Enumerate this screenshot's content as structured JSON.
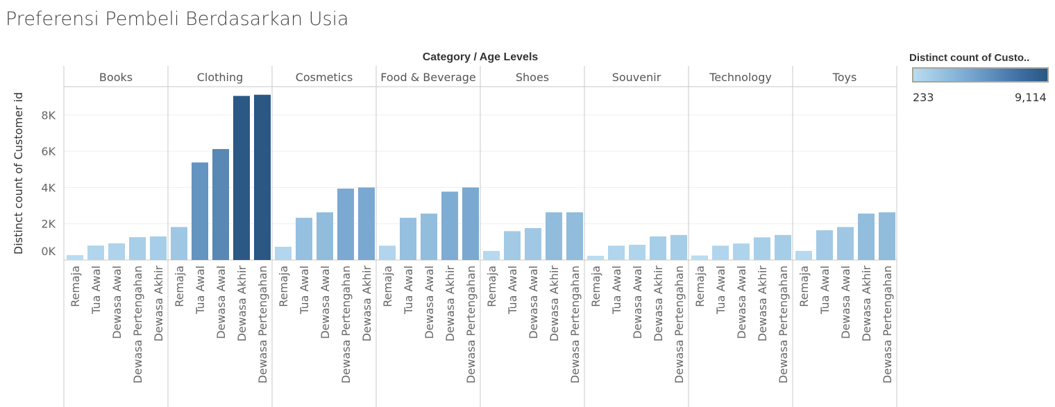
{
  "title": "Preferensi Pembeli Berdasarkan Usia",
  "chart_data": {
    "type": "bar",
    "title": "Preferensi Pembeli Berdasarkan Usia",
    "column_header": "Category / Age Levels",
    "ylabel": "Distinct count of Customer id",
    "ylim": [
      0,
      9500
    ],
    "yticks": [
      "0K",
      "2K",
      "4K",
      "6K",
      "8K"
    ],
    "ytick_values": [
      0,
      2000,
      4000,
      6000,
      8000
    ],
    "grid": true,
    "panels": [
      {
        "category": "Books",
        "labels": [
          "Remaja",
          "Tua Awal",
          "Dewasa Awal",
          "Dewasa Pertengahan",
          "Dewasa Akhir"
        ],
        "values": [
          270,
          800,
          920,
          1260,
          1300
        ]
      },
      {
        "category": "Clothing",
        "labels": [
          "Remaja",
          "Tua Awal",
          "Dewasa Awal",
          "Dewasa Akhir",
          "Dewasa Pertengahan"
        ],
        "values": [
          1820,
          5380,
          6120,
          9050,
          9114
        ]
      },
      {
        "category": "Cosmetics",
        "labels": [
          "Remaja",
          "Tua Awal",
          "Dewasa Awal",
          "Dewasa Pertengahan",
          "Dewasa Akhir"
        ],
        "values": [
          730,
          2330,
          2630,
          3940,
          4000
        ]
      },
      {
        "category": "Food & Beverage",
        "labels": [
          "Remaja",
          "Tua Awal",
          "Dewasa Awal",
          "Dewasa Akhir",
          "Dewasa Pertengahan"
        ],
        "values": [
          790,
          2330,
          2560,
          3770,
          4000
        ]
      },
      {
        "category": "Shoes",
        "labels": [
          "Remaja",
          "Tua Awal",
          "Dewasa Awal",
          "Dewasa Akhir",
          "Dewasa Pertengahan"
        ],
        "values": [
          500,
          1590,
          1760,
          2630,
          2630
        ]
      },
      {
        "category": "Souvenir",
        "labels": [
          "Remaja",
          "Tua Awal",
          "Dewasa Awal",
          "Dewasa Akhir",
          "Dewasa Pertengahan"
        ],
        "values": [
          233,
          790,
          840,
          1300,
          1380
        ]
      },
      {
        "category": "Technology",
        "labels": [
          "Remaja",
          "Tua Awal",
          "Dewasa Awal",
          "Dewasa Akhir",
          "Dewasa Pertengahan"
        ],
        "values": [
          250,
          790,
          910,
          1250,
          1380
        ]
      },
      {
        "category": "Toys",
        "labels": [
          "Remaja",
          "Tua Awal",
          "Dewasa Awal",
          "Dewasa Akhir",
          "Dewasa Pertengahan"
        ],
        "values": [
          500,
          1640,
          1820,
          2560,
          2630
        ]
      }
    ],
    "legend": {
      "title": "Distinct count of Custo..",
      "min_label": "233",
      "max_label": "9,114",
      "min": 233,
      "max": 9114,
      "placement": "top-right"
    },
    "colors": {
      "low": "#b9ddf1",
      "mid": "#6f9fcb",
      "high": "#2a5783"
    }
  }
}
